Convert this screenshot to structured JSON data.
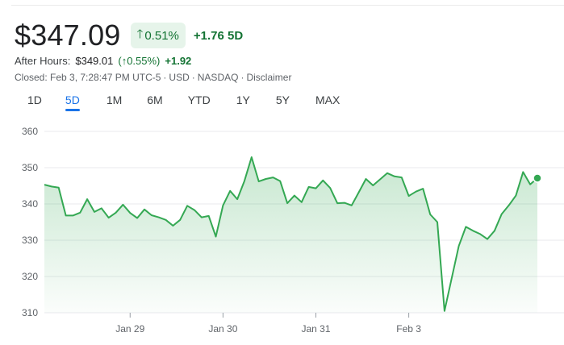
{
  "quote": {
    "price": "$347.09",
    "change_pct": "0.51%",
    "change_period": "+1.76 5D",
    "arrow_icon": "arrow-up-icon"
  },
  "after_hours": {
    "label": "After Hours:",
    "price": "$349.01",
    "change_pct": "(↑0.55%)",
    "change_abs": "+1.92"
  },
  "status": {
    "closed": "Closed: Feb 3, 7:28:47 PM UTC-5",
    "currency": "USD",
    "exchange": "NASDAQ",
    "disclaimer": "Disclaimer",
    "separator": "·"
  },
  "ranges": [
    {
      "label": "1D",
      "active": false
    },
    {
      "label": "5D",
      "active": true
    },
    {
      "label": "1M",
      "active": false
    },
    {
      "label": "6M",
      "active": false
    },
    {
      "label": "YTD",
      "active": false
    },
    {
      "label": "1Y",
      "active": false
    },
    {
      "label": "5Y",
      "active": false
    },
    {
      "label": "MAX",
      "active": false
    }
  ],
  "colors": {
    "up": "#34a853",
    "up_text": "#137333",
    "grid": "#e8eaed",
    "accent": "#1a73e8"
  },
  "chart_data": {
    "type": "area",
    "ylim": [
      310,
      360
    ],
    "yticks": [
      310,
      320,
      330,
      340,
      350,
      360
    ],
    "xtick_labels": [
      "Jan 29",
      "Jan 30",
      "Jan 31",
      "Feb 3"
    ],
    "xtick_index": [
      12.0,
      25.0,
      38.0,
      51.0
    ],
    "last_point_marker": true,
    "values": [
      345.3,
      344.8,
      344.5,
      336.8,
      336.8,
      337.6,
      341.3,
      337.8,
      338.8,
      336.2,
      337.6,
      339.8,
      337.5,
      336.1,
      338.5,
      336.9,
      336.3,
      335.6,
      334.0,
      335.6,
      339.5,
      338.3,
      336.3,
      336.7,
      331.0,
      339.6,
      343.6,
      341.3,
      346.3,
      352.9,
      346.2,
      346.9,
      347.3,
      346.3,
      340.2,
      342.3,
      340.5,
      344.7,
      344.3,
      346.5,
      344.4,
      340.2,
      340.3,
      339.6,
      343.2,
      346.9,
      345.1,
      346.8,
      348.5,
      347.6,
      347.3,
      342.2,
      343.4,
      344.2,
      337.1,
      335.0,
      310.5,
      319.4,
      328.4,
      333.7,
      332.6,
      331.7,
      330.3,
      332.6,
      337.2,
      339.6,
      342.3,
      348.8,
      345.4,
      347.1
    ]
  }
}
